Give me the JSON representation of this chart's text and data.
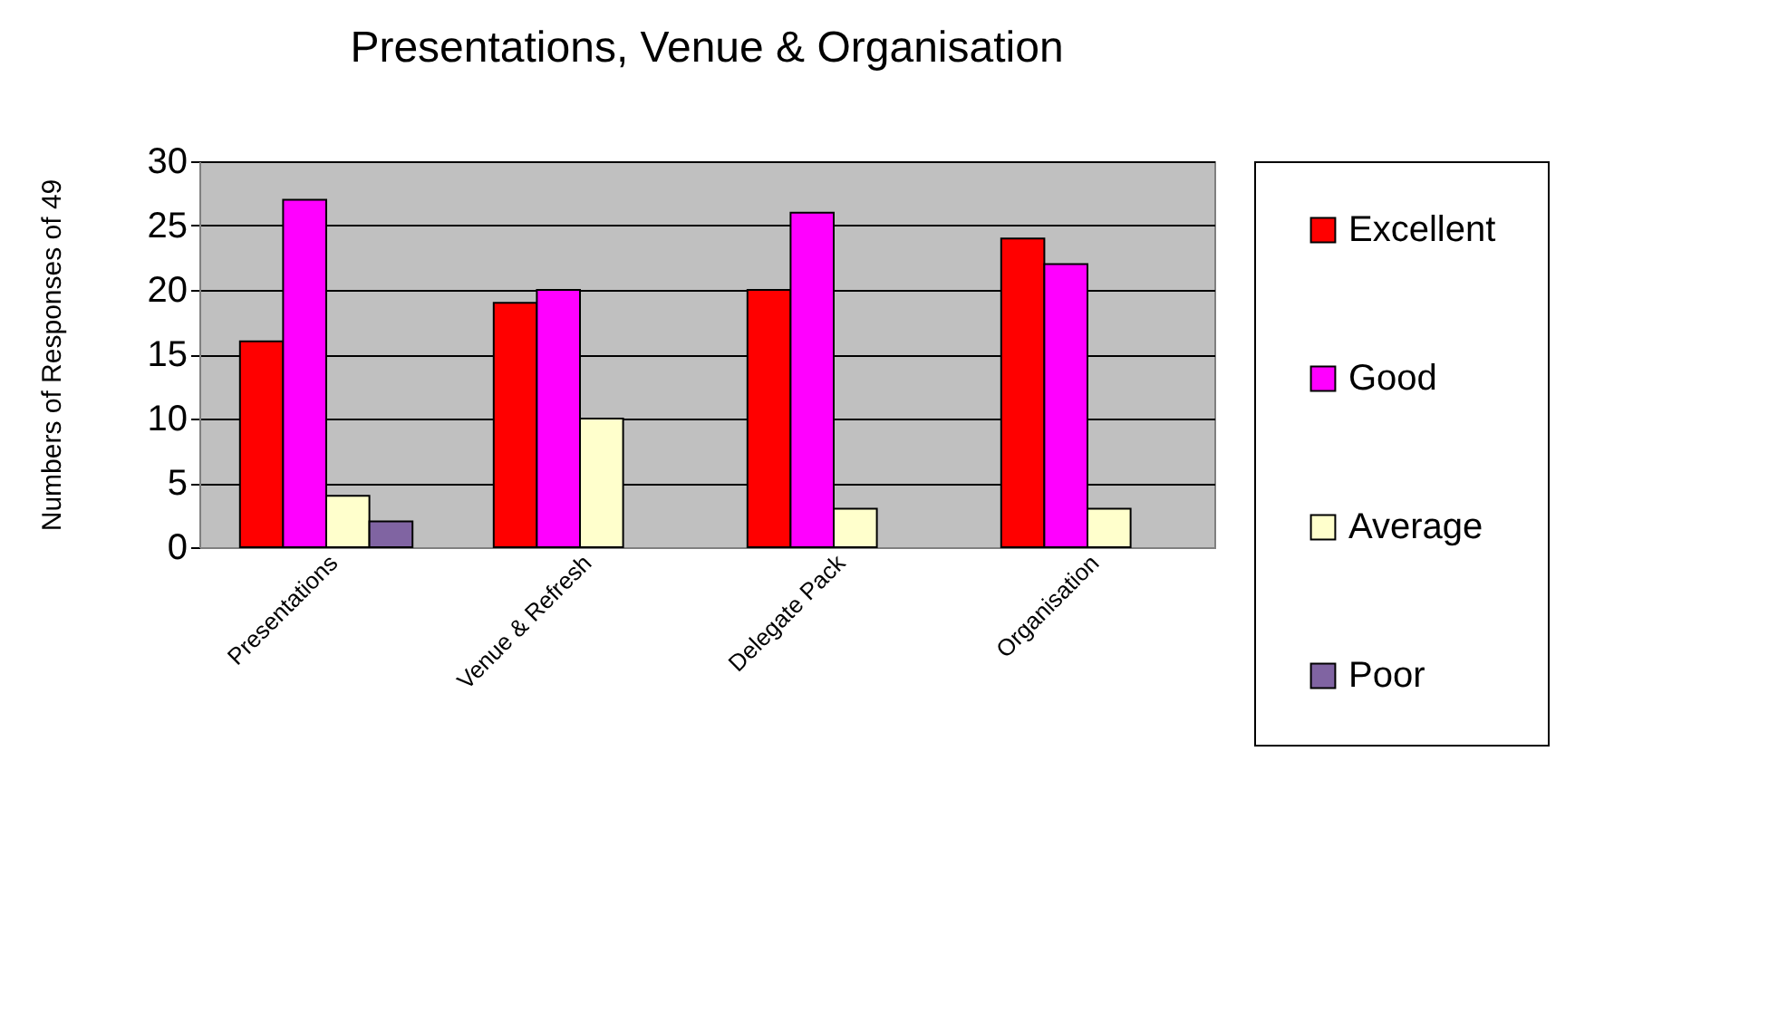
{
  "chart_data": {
    "type": "bar",
    "title": "Presentations, Venue & Organisation",
    "ylabel": "Numbers of Responses of 49",
    "categories": [
      "Presentations",
      "Venue & Refresh",
      "Delegate Pack",
      "Organisation"
    ],
    "series": [
      {
        "name": "Excellent",
        "color": "#ff0000",
        "values": [
          16,
          19,
          20,
          24
        ]
      },
      {
        "name": "Good",
        "color": "#ff00ff",
        "values": [
          27,
          20,
          26,
          22
        ]
      },
      {
        "name": "Average",
        "color": "#ffffcc",
        "values": [
          4,
          10,
          3,
          3
        ]
      },
      {
        "name": "Poor",
        "color": "#8064a2",
        "values": [
          2,
          0,
          0,
          0
        ]
      }
    ],
    "ylim": [
      0,
      30
    ],
    "yticks": [
      0,
      5,
      10,
      15,
      20,
      25,
      30
    ],
    "grid": "y",
    "legend": "right"
  }
}
